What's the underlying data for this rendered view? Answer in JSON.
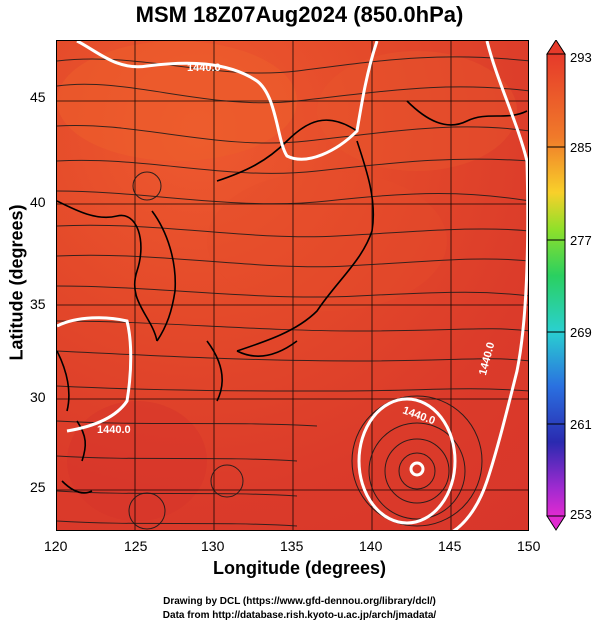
{
  "title": "MSM 18Z07Aug2024 (850.0hPa)",
  "axes": {
    "xlabel": "Longitude (degrees)",
    "ylabel": "Latitude  (degrees)",
    "xticks": [
      "120",
      "125",
      "130",
      "135",
      "140",
      "145",
      "150"
    ],
    "yticks": [
      "25",
      "30",
      "35",
      "40",
      "45"
    ]
  },
  "colorbar": {
    "labels": [
      "293",
      "285",
      "277",
      "269",
      "261",
      "253"
    ],
    "min": 253,
    "max": 293
  },
  "contour_labels": [
    "1440.0",
    "1440.0",
    "1440.0",
    "1440.0"
  ],
  "footer": {
    "line1": "Drawing by DCL (https://www.gfd-dennou.org/library/dcl/)",
    "line2": "Data from http://database.rish.kyoto-u.ac.jp/arch/jmadata/"
  },
  "colors": {
    "field": "#dc3c2a",
    "contour": "#ffffff",
    "coast": "#000000"
  }
}
